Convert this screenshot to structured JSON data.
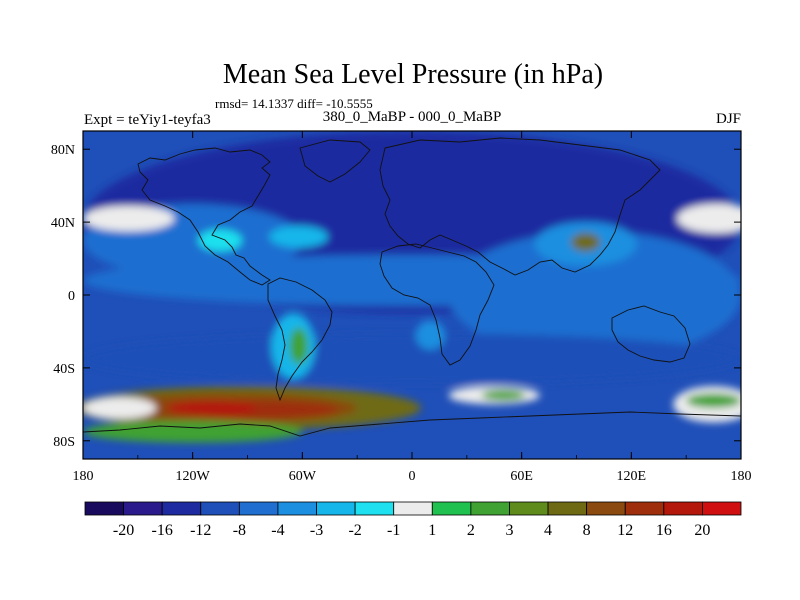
{
  "chart_data": {
    "type": "heatmap",
    "title": "Mean Sea Level Pressure (in hPa)",
    "stats_label": "rmsd= 14.1337 diff= -10.5555",
    "left_label": "Expt = teYiy1-teyfa3",
    "center_label": "380_0_MaBP - 000_0_MaBP",
    "right_label": "DJF",
    "xlim": [
      -180,
      180
    ],
    "ylim": [
      -90,
      90
    ],
    "x_ticks": [
      {
        "value": -180,
        "label": "180"
      },
      {
        "value": -120,
        "label": "120W"
      },
      {
        "value": -60,
        "label": "60W"
      },
      {
        "value": 0,
        "label": "0"
      },
      {
        "value": 60,
        "label": "60E"
      },
      {
        "value": 120,
        "label": "120E"
      },
      {
        "value": 180,
        "label": "180"
      }
    ],
    "y_ticks": [
      {
        "value": 80,
        "label": "80N"
      },
      {
        "value": 40,
        "label": "40N"
      },
      {
        "value": 0,
        "label": "0"
      },
      {
        "value": -40,
        "label": "40S"
      },
      {
        "value": -80,
        "label": "80S"
      }
    ],
    "colorbar": {
      "colors": [
        "#1a0a5e",
        "#2b1a8c",
        "#1e2ba0",
        "#1f4fb8",
        "#1f6ed0",
        "#1d8fe0",
        "#16b6ea",
        "#1ee0ee",
        "#ececec",
        "#21c150",
        "#3fa232",
        "#5f8a1c",
        "#6e6a14",
        "#8a4a10",
        "#9e2e0c",
        "#b4180a",
        "#d01010"
      ],
      "labels": [
        "-20",
        "-16",
        "-12",
        "-8",
        "-4",
        "-3",
        "-2",
        "-1",
        "1",
        "2",
        "3",
        "4",
        "8",
        "12",
        "16",
        "20"
      ]
    },
    "field_features": [
      {
        "lon": 0,
        "lat": 40,
        "rx": 180,
        "ry": 50,
        "value": -16
      },
      {
        "lon": -120,
        "lat": 30,
        "rx": 60,
        "ry": 20,
        "value": -8
      },
      {
        "lon": 0,
        "lat": 8,
        "rx": 180,
        "ry": 14,
        "value": -8
      },
      {
        "lon": 100,
        "lat": 0,
        "rx": 80,
        "ry": 35,
        "value": -8
      },
      {
        "lon": 0,
        "lat": -35,
        "rx": 180,
        "ry": 14,
        "value": -12
      },
      {
        "lon": -155,
        "lat": 42,
        "rx": 25,
        "ry": 7,
        "value": -1
      },
      {
        "lon": 167,
        "lat": 42,
        "rx": 22,
        "ry": 8,
        "value": -1
      },
      {
        "lon": -105,
        "lat": 30,
        "rx": 12,
        "ry": 6,
        "value": -2
      },
      {
        "lon": -62,
        "lat": 32,
        "rx": 16,
        "ry": 6,
        "value": -3
      },
      {
        "lon": -65,
        "lat": -28,
        "rx": 12,
        "ry": 18,
        "value": -3
      },
      {
        "lon": -62,
        "lat": -28,
        "rx": 5,
        "ry": 10,
        "value": 2
      },
      {
        "lon": 10,
        "lat": -22,
        "rx": 8,
        "ry": 8,
        "value": -4
      },
      {
        "lon": 95,
        "lat": 28,
        "rx": 28,
        "ry": 12,
        "value": -4
      },
      {
        "lon": 95,
        "lat": 29,
        "rx": 8,
        "ry": 5,
        "value": 4
      },
      {
        "lon": -90,
        "lat": -62,
        "rx": 95,
        "ry": 12,
        "value": 4
      },
      {
        "lon": -100,
        "lat": -62,
        "rx": 70,
        "ry": 8,
        "value": 8
      },
      {
        "lon": -80,
        "lat": -63,
        "rx": 40,
        "ry": 5,
        "value": 12
      },
      {
        "lon": -110,
        "lat": -62,
        "rx": 25,
        "ry": 4,
        "value": 16
      },
      {
        "lon": -120,
        "lat": -75,
        "rx": 60,
        "ry": 6,
        "value": 2
      },
      {
        "lon": 45,
        "lat": -55,
        "rx": 25,
        "ry": 5,
        "value": -1
      },
      {
        "lon": 50,
        "lat": -55,
        "rx": 12,
        "ry": 3,
        "value": 2
      },
      {
        "lon": 165,
        "lat": -60,
        "rx": 22,
        "ry": 10,
        "value": -1
      },
      {
        "lon": 165,
        "lat": -58,
        "rx": 15,
        "ry": 4,
        "value": 2
      },
      {
        "lon": -160,
        "lat": -62,
        "rx": 20,
        "ry": 6,
        "value": -1
      }
    ]
  }
}
